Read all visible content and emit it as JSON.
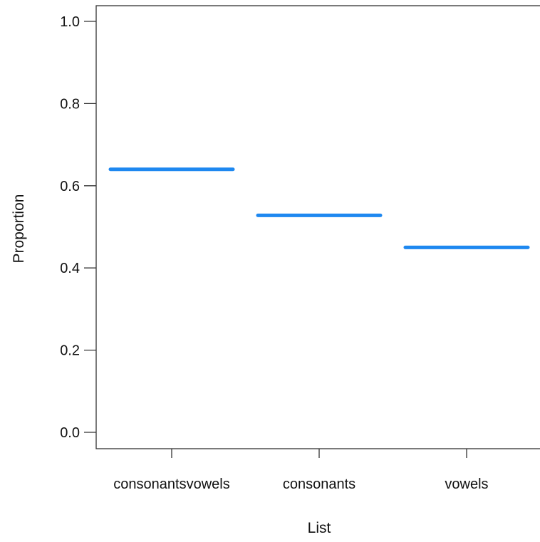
{
  "chart_data": {
    "type": "line",
    "title": "",
    "xlabel": "List",
    "ylabel": "Proportion",
    "categories": [
      "consonantsvowels",
      "consonants",
      "vowels"
    ],
    "values": [
      0.64,
      0.528,
      0.45
    ],
    "ylim": [
      0,
      1
    ],
    "yticks": [
      "0.0",
      "0.2",
      "0.4",
      "0.6",
      "0.8",
      "1.0"
    ],
    "grid": false,
    "legend": "none",
    "colors": {
      "series": "#1E88F0",
      "axis": "#333333"
    }
  }
}
